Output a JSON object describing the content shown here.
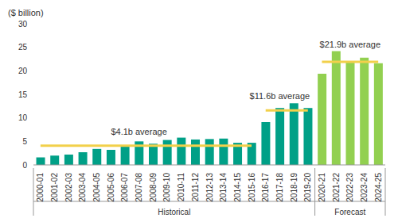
{
  "chart_data": {
    "type": "bar",
    "y_label": "($ billion)",
    "categories": [
      "2000-01",
      "2001-02",
      "2002-03",
      "2003-04",
      "2004-05",
      "2005-06",
      "2006-07",
      "2007-08",
      "2008-09",
      "2009-10",
      "2010-11",
      "2011-12",
      "2012-13",
      "2013-14",
      "2014-15",
      "2015-16",
      "2016-17",
      "2017-18",
      "2018-19",
      "2019-20",
      "2020-21",
      "2021-22",
      "2022-23",
      "2023-24",
      "2024-25"
    ],
    "values": [
      1.6,
      2.0,
      2.2,
      2.7,
      3.4,
      3.2,
      4.0,
      5.0,
      4.5,
      5.3,
      5.8,
      5.4,
      5.5,
      5.6,
      4.7,
      4.7,
      9.1,
      12.1,
      13.1,
      12.1,
      19.4,
      24.2,
      22.0,
      22.8,
      21.6
    ],
    "colors": [
      "#00a087",
      "#00a087",
      "#00a087",
      "#00a087",
      "#00a087",
      "#00a087",
      "#00a087",
      "#00a087",
      "#00a087",
      "#00a087",
      "#00a087",
      "#00a087",
      "#00a087",
      "#00a087",
      "#00a087",
      "#00a087",
      "#00a087",
      "#00a087",
      "#00a087",
      "#00a087",
      "#92d050",
      "#92d050",
      "#92d050",
      "#92d050",
      "#92d050"
    ],
    "averages": [
      {
        "label": "$4.1b average",
        "value": 4.1,
        "start": "2000-01",
        "end": "2015-16",
        "color": "#f2d04b"
      },
      {
        "label": "$11.6b average",
        "value": 11.6,
        "start": "2016-17",
        "end": "2019-20",
        "color": "#f2d04b"
      },
      {
        "label": "$21.9b average",
        "value": 21.9,
        "start": "2020-21",
        "end": "2024-25",
        "color": "#f2d04b"
      }
    ],
    "groups": [
      {
        "label": "Historical",
        "start": "2000-01",
        "end": "2019-20"
      },
      {
        "label": "Forecast",
        "start": "2020-21",
        "end": "2024-25"
      }
    ],
    "ylim": [
      0,
      30
    ],
    "yticks": [
      0,
      5,
      10,
      15,
      20,
      25,
      30
    ],
    "grid": false
  }
}
